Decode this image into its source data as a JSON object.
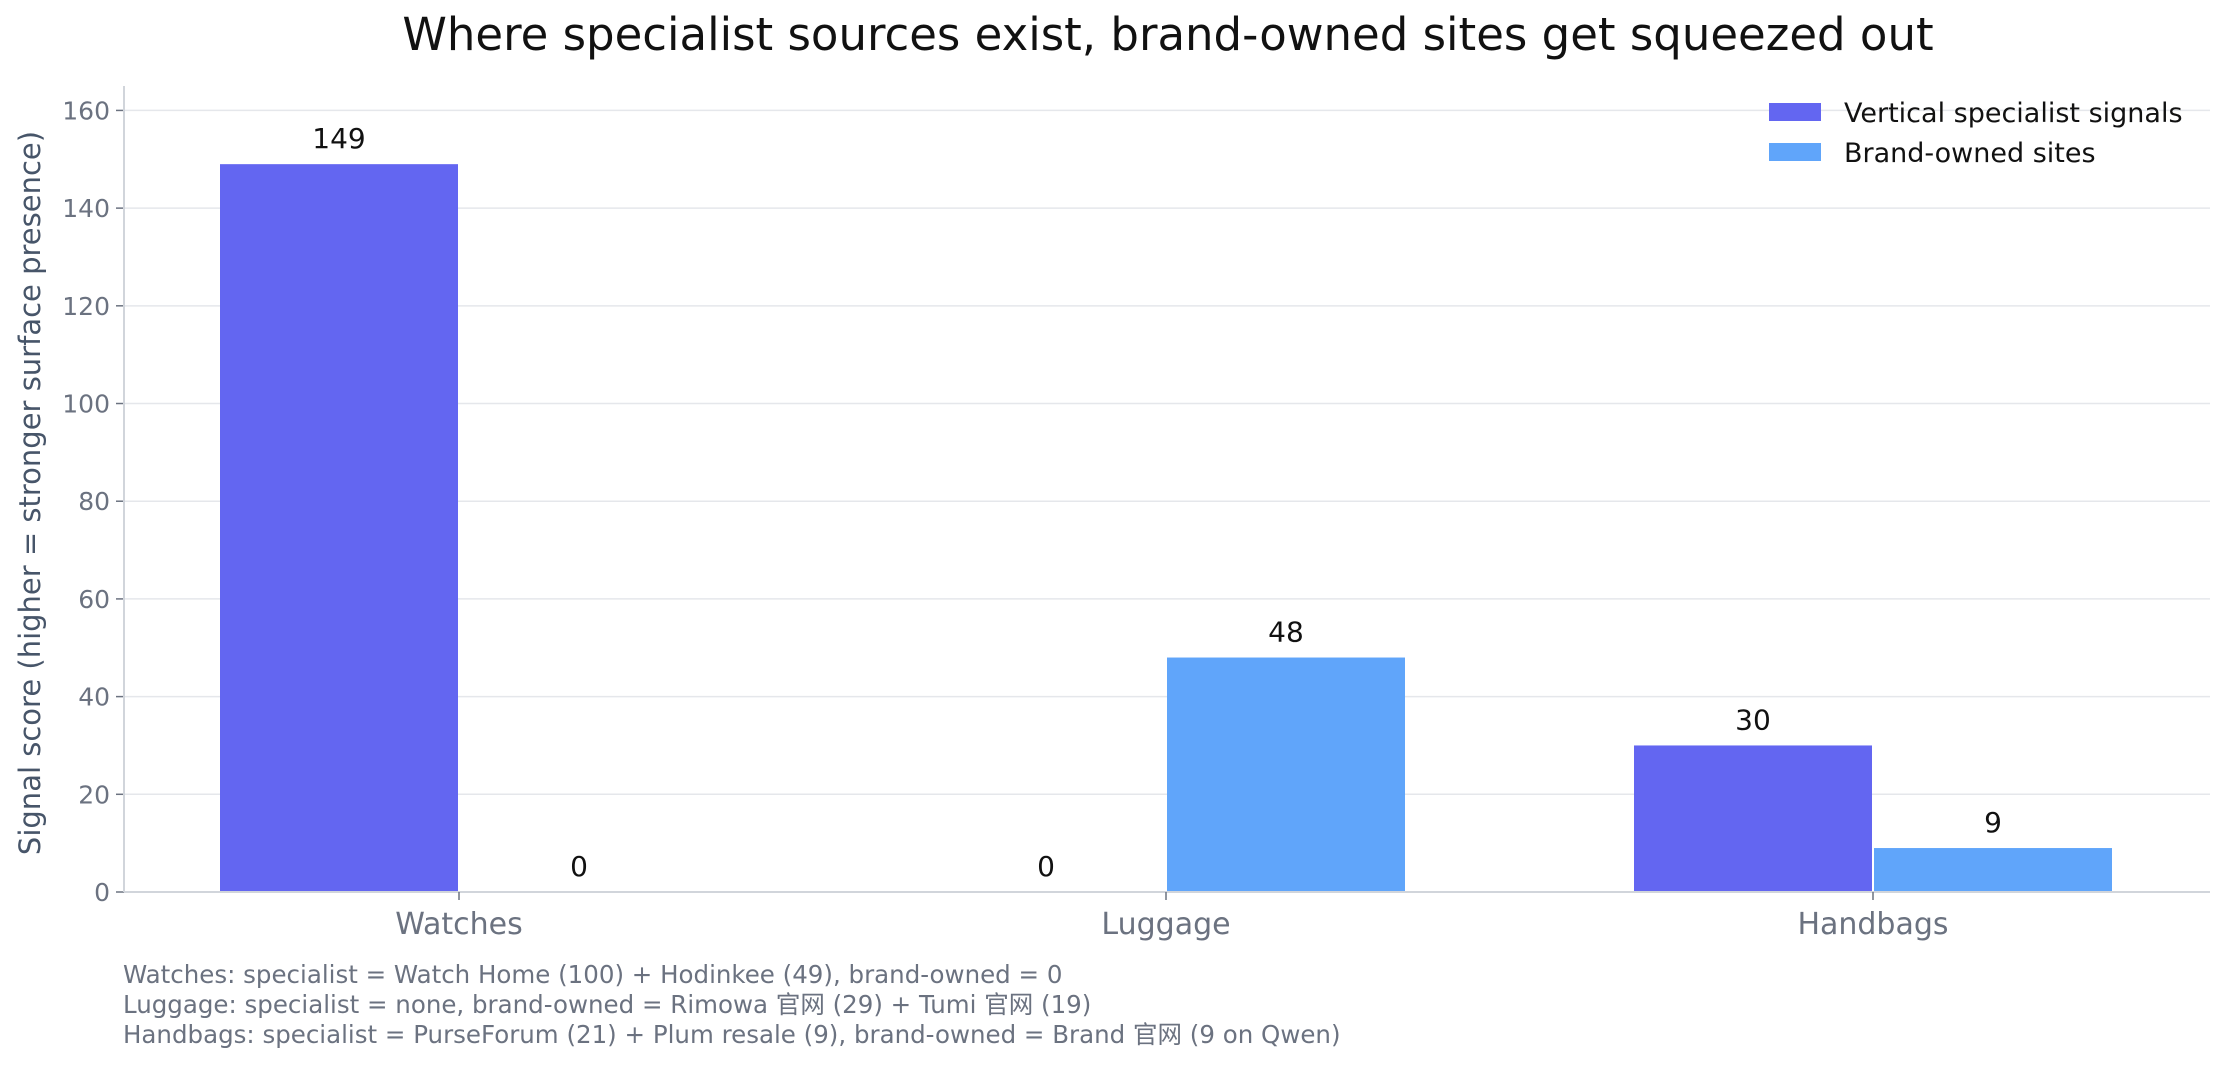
{
  "chart_data": {
    "type": "bar",
    "title": "Where specialist sources exist, brand-owned sites get squeezed out",
    "ylabel": "Signal score (higher = stronger surface presence)",
    "xlabel": "",
    "categories": [
      "Watches",
      "Luggage",
      "Handbags"
    ],
    "series": [
      {
        "name": "Vertical specialist signals",
        "values": [
          149,
          0,
          30
        ],
        "color": "#6366f1"
      },
      {
        "name": "Brand-owned sites",
        "values": [
          0,
          48,
          9
        ],
        "color": "#60a5fa"
      }
    ],
    "ylim": [
      0,
      165
    ],
    "yticks": [
      0,
      20,
      40,
      60,
      80,
      100,
      120,
      140,
      160
    ],
    "grid": true,
    "legend_position": "top-right",
    "footnotes": [
      "Watches: specialist = Watch Home (100) + Hodinkee (49), brand-owned = 0",
      "Luggage: specialist = none, brand-owned = Rimowa 官网 (29) + Tumi 官网 (19)",
      "Handbags: specialist = PurseForum (21) + Plum resale (9), brand-owned = Brand 官网 (9 on Qwen)"
    ]
  }
}
